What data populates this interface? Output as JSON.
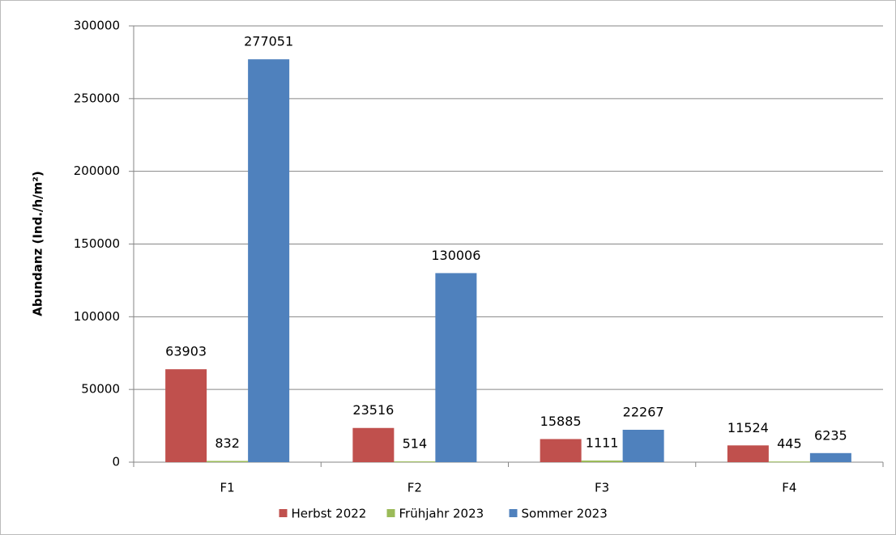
{
  "chart_data": {
    "type": "bar",
    "y_label": "Abundanz (Ind./h/m²)",
    "categories": [
      "F1",
      "F2",
      "F3",
      "F4"
    ],
    "series": [
      {
        "name": "Herbst 2022",
        "color": "#c0504d",
        "values": [
          63903,
          23516,
          15885,
          11524
        ]
      },
      {
        "name": "Frühjahr 2023",
        "color": "#9bbb59",
        "values": [
          832,
          514,
          1111,
          445
        ]
      },
      {
        "name": "Sommer 2023",
        "color": "#4f81bd",
        "values": [
          277051,
          130006,
          22267,
          6235
        ]
      }
    ],
    "ylim": [
      0,
      300000
    ],
    "yticks": [
      0,
      50000,
      100000,
      150000,
      200000,
      250000,
      300000
    ],
    "grid": true,
    "legend": "bottom"
  }
}
